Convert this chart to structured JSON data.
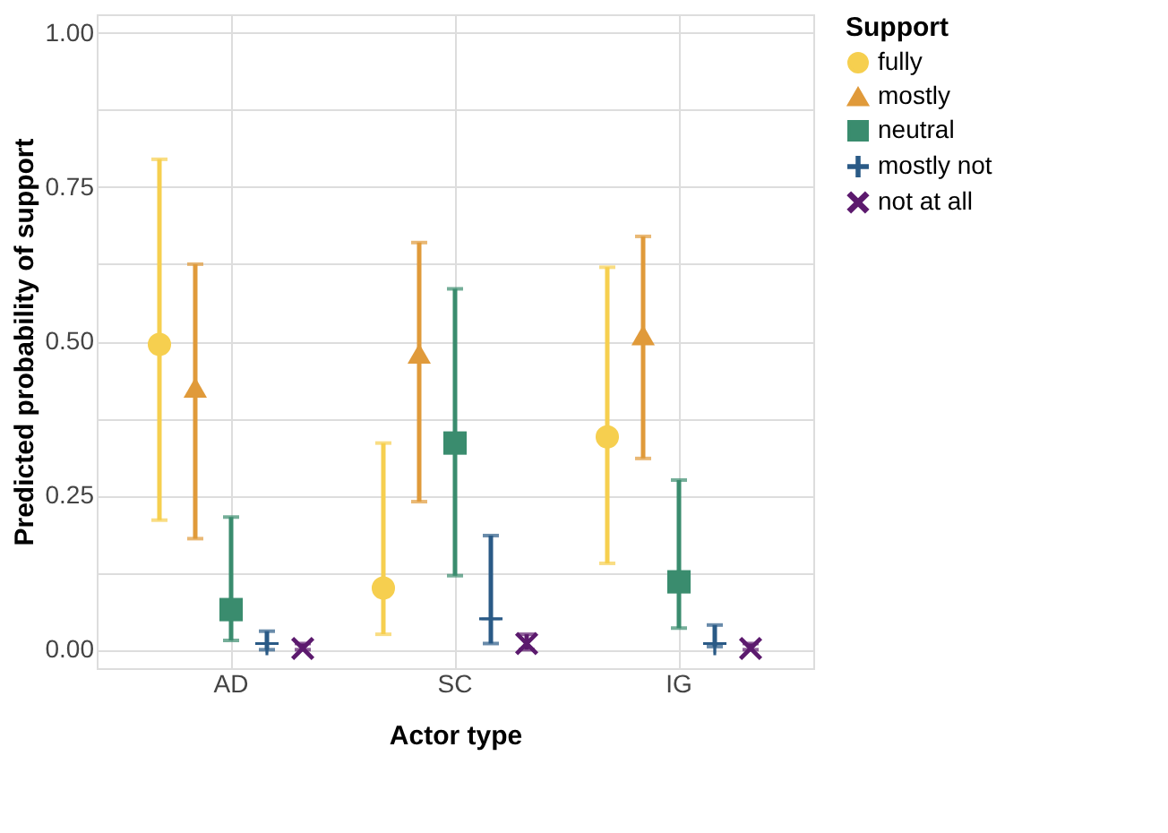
{
  "chart_data": {
    "type": "scatter",
    "xlabel": "Actor type",
    "ylabel": "Predicted probability of support",
    "legend_title": "Support",
    "categories": [
      "AD",
      "SC",
      "IG"
    ],
    "series": [
      {
        "name": "fully",
        "color": "#f6cf4f",
        "marker": "circle",
        "values": [
          0.495,
          0.1,
          0.345
        ],
        "errors": [
          [
            0.21,
            0.795
          ],
          [
            0.025,
            0.335
          ],
          [
            0.14,
            0.62
          ]
        ]
      },
      {
        "name": "mostly",
        "color": "#e09a3a",
        "marker": "triangle",
        "values": [
          0.425,
          0.48,
          0.51
        ],
        "errors": [
          [
            0.18,
            0.625
          ],
          [
            0.24,
            0.66
          ],
          [
            0.31,
            0.67
          ]
        ]
      },
      {
        "name": "neutral",
        "color": "#3a8c6e",
        "marker": "square",
        "values": [
          0.065,
          0.335,
          0.11
        ],
        "errors": [
          [
            0.015,
            0.215
          ],
          [
            0.12,
            0.585
          ],
          [
            0.035,
            0.275
          ]
        ]
      },
      {
        "name": "mostly not",
        "color": "#2a5a86",
        "marker": "cross",
        "values": [
          0.01,
          0.05,
          0.01
        ],
        "errors": [
          [
            0.0,
            0.03
          ],
          [
            0.01,
            0.185
          ],
          [
            0.005,
            0.04
          ]
        ]
      },
      {
        "name": "not at all",
        "color": "#5c1a6e",
        "marker": "x",
        "values": [
          0.002,
          0.01,
          0.002
        ],
        "errors": [
          [
            0.0,
            0.01
          ],
          [
            0.0,
            0.025
          ],
          [
            0.0,
            0.01
          ]
        ]
      }
    ],
    "ylim": [
      -0.03,
      1.03
    ],
    "yticks": [
      {
        "value": 0,
        "label": "0.00"
      },
      {
        "value": 0.125,
        "label": null
      },
      {
        "value": 0.25,
        "label": "0.25"
      },
      {
        "value": 0.375,
        "label": null
      },
      {
        "value": 0.5,
        "label": "0.50"
      },
      {
        "value": 0.625,
        "label": null
      },
      {
        "value": 0.75,
        "label": "0.75"
      },
      {
        "value": 0.875,
        "label": null
      },
      {
        "value": 1,
        "label": "1.00"
      }
    ],
    "grid": true,
    "legend": "top right"
  }
}
